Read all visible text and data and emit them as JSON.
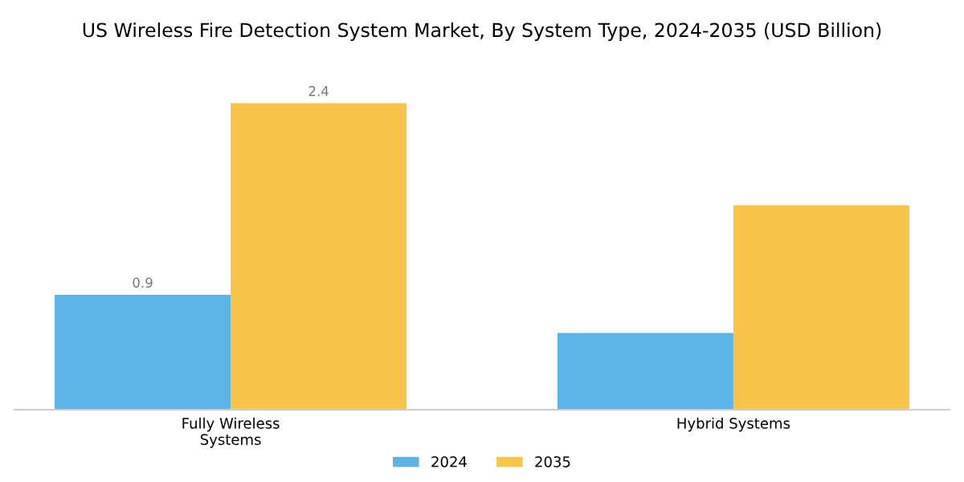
{
  "chart_data": {
    "type": "bar",
    "title": "US Wireless Fire Detection System Market, By System Type, 2024-2035 (USD Billion)",
    "categories": [
      "Fully Wireless\nSystems",
      "Hybrid Systems"
    ],
    "series": [
      {
        "name": "2024",
        "color": "#5db3e6",
        "values": [
          0.9,
          0.6
        ],
        "value_labels": [
          "0.9",
          null
        ]
      },
      {
        "name": "2035",
        "color": "#f9c44c",
        "values": [
          2.4,
          1.6
        ],
        "value_labels": [
          "2.4",
          null
        ]
      }
    ],
    "legend": "bottom",
    "grid": false
  }
}
